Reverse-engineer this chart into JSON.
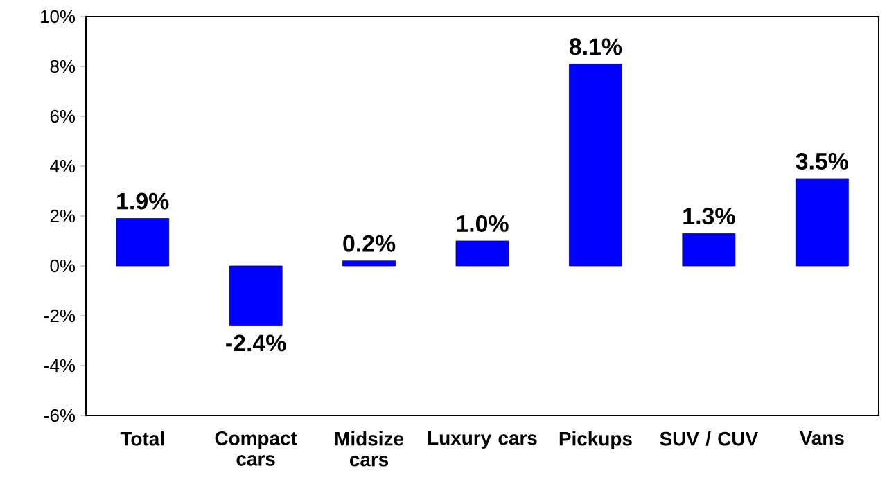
{
  "chart_data": {
    "type": "bar",
    "categories": [
      "Total",
      "Compact cars",
      "Midsize cars",
      "Luxury cars",
      "Pickups",
      "SUV / CUV",
      "Vans"
    ],
    "values": [
      1.9,
      -2.4,
      0.2,
      1.0,
      8.1,
      1.3,
      3.5
    ],
    "value_labels": [
      "1.9%",
      "-2.4%",
      "0.2%",
      "1.0%",
      "8.1%",
      "1.3%",
      "3.5%"
    ],
    "color": "#0000ff",
    "ylim": [
      -6,
      10
    ],
    "yticks": [
      {
        "value": -6,
        "label": "-6%"
      },
      {
        "value": -4,
        "label": "-4%"
      },
      {
        "value": -2,
        "label": "-2%"
      },
      {
        "value": 0,
        "label": "0%"
      },
      {
        "value": 2,
        "label": "2%"
      },
      {
        "value": 4,
        "label": "4%"
      },
      {
        "value": 6,
        "label": "6%"
      },
      {
        "value": 8,
        "label": "8%"
      },
      {
        "value": 10,
        "label": "10%"
      }
    ],
    "grid": false
  }
}
